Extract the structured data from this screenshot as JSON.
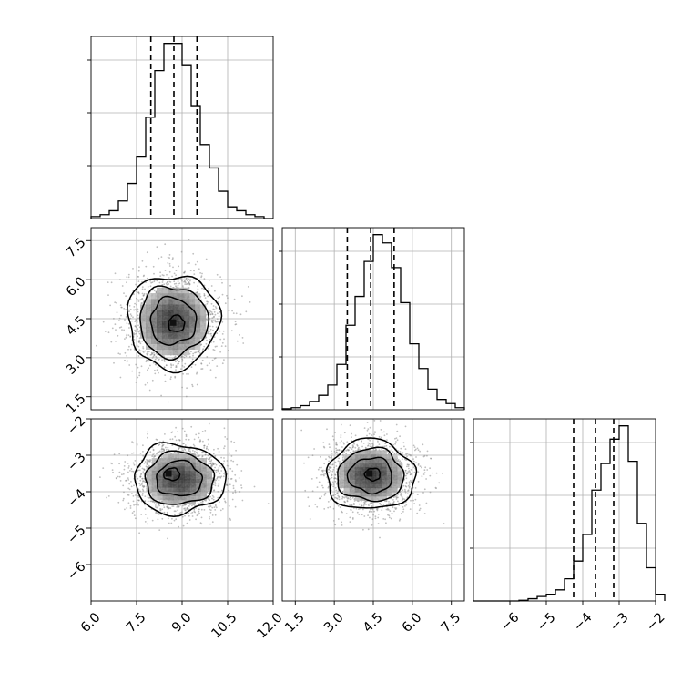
{
  "chart_data": {
    "type": "corner",
    "parameters": [
      {
        "name": "",
        "axis_range": [
          6.0,
          12.0
        ],
        "tick_values": [
          6.0,
          7.5,
          9.0,
          10.5,
          12.0
        ],
        "tick_labels": [
          "6.0",
          "7.5",
          "9.0",
          "10.5",
          "12.0"
        ],
        "quantiles": [
          7.97,
          8.73,
          9.49
        ],
        "hist_edges_start": 6.0,
        "hist_bin_width": 0.3,
        "hist_counts": [
          1,
          2,
          4,
          9,
          18,
          32,
          52,
          76,
          90,
          90,
          79,
          58,
          38,
          26,
          14,
          6,
          4,
          2,
          1,
          0
        ]
      },
      {
        "name": "",
        "axis_range": [
          1.0,
          8.0
        ],
        "tick_values": [
          1.5,
          3.0,
          4.5,
          6.0,
          7.5
        ],
        "tick_labels": [
          "1.5",
          "3.0",
          "4.5",
          "6.0",
          "7.5"
        ],
        "quantiles": [
          3.5,
          4.4,
          5.3
        ],
        "hist_edges_start": 1.0,
        "hist_bin_width": 0.35,
        "hist_counts": [
          0.5,
          1,
          2,
          4,
          7,
          12,
          22,
          41,
          55,
          72,
          85,
          81,
          69,
          52,
          32,
          20,
          10,
          5,
          3,
          1
        ]
      },
      {
        "name": "",
        "axis_range": [
          -7.0,
          -2.0
        ],
        "tick_values": [
          -6,
          -5,
          -4,
          -3,
          -2
        ],
        "tick_labels": [
          "−6",
          "−5",
          "−4",
          "−3",
          "−2"
        ],
        "quantiles": [
          -4.25,
          -3.65,
          -3.15
        ],
        "hist_edges_start": -7.0,
        "hist_bin_width": 0.25,
        "hist_counts": [
          0,
          0,
          0,
          0,
          0,
          0.3,
          1,
          2,
          3,
          5,
          10,
          18,
          30,
          50,
          62,
          73,
          79,
          63,
          35,
          15,
          3
        ]
      }
    ],
    "panels": [
      {
        "row": 1,
        "col": 0,
        "x_param": 0,
        "y_param": 1,
        "center": [
          8.7,
          4.4
        ],
        "sd": [
          0.75,
          0.9
        ],
        "mode": [
          8.7,
          4.35
        ]
      },
      {
        "row": 2,
        "col": 0,
        "x_param": 0,
        "y_param": 2,
        "center": [
          8.9,
          -3.65
        ],
        "sd": [
          0.75,
          0.48
        ],
        "mode": [
          8.55,
          -3.5
        ]
      },
      {
        "row": 2,
        "col": 1,
        "x_param": 1,
        "y_param": 2,
        "center": [
          4.4,
          -3.55
        ],
        "sd": [
          0.85,
          0.48
        ],
        "mode": [
          4.35,
          -3.5
        ]
      }
    ],
    "grid": true,
    "contour_levels_sigma": [
      0.5,
      1.0,
      1.5,
      2.0
    ],
    "colors": {
      "line": "#000000",
      "grid": "#b0b0b0",
      "points": "#8a8a8a"
    }
  }
}
